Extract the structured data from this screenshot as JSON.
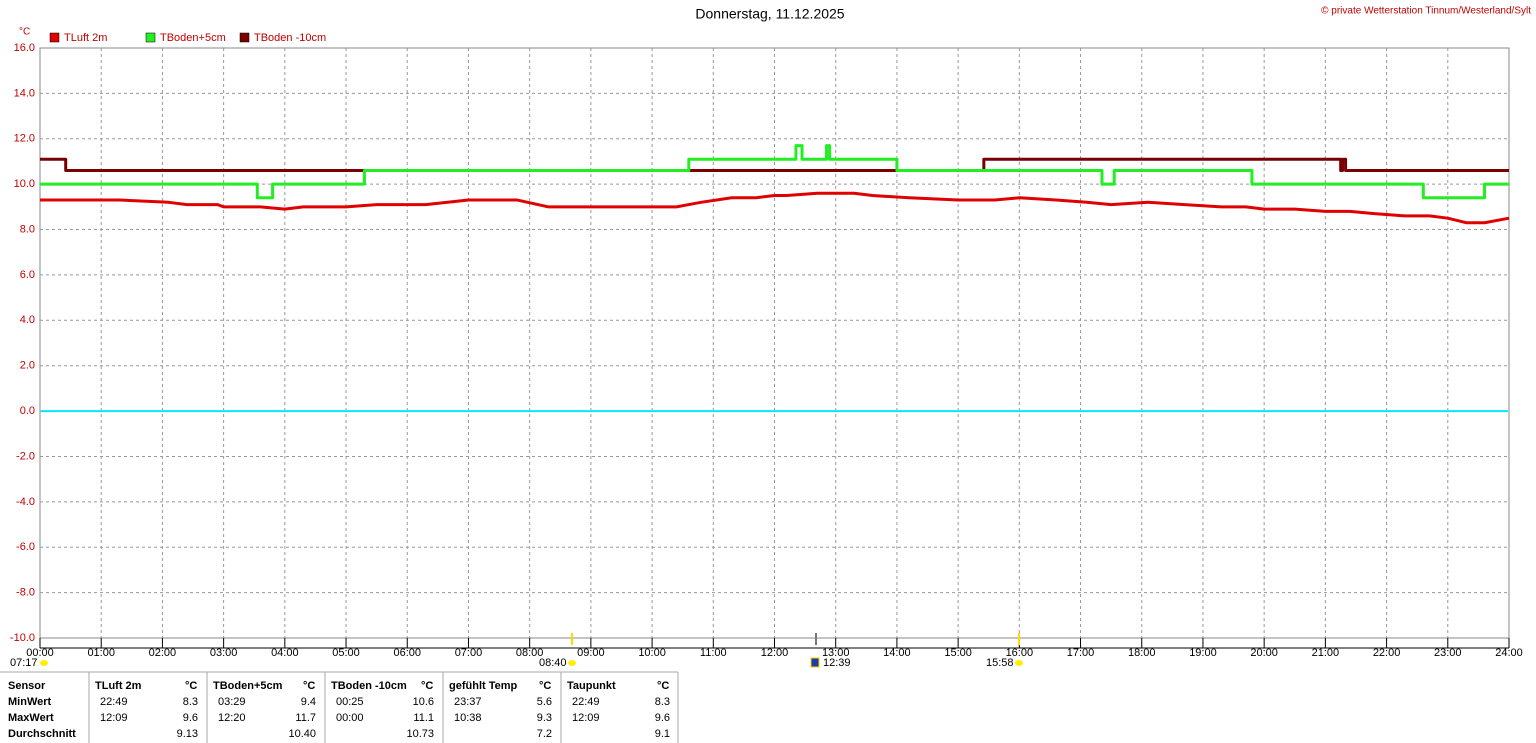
{
  "chart_data": {
    "type": "line",
    "title": "Donnerstag, 11.12.2025",
    "copyright": "© private Wetterstation Tinnum/Westerland/Sylt",
    "y_label": "°C",
    "xlim": [
      0,
      24
    ],
    "xticks": [
      {
        "value": 0,
        "label": "00:00"
      },
      {
        "value": 1,
        "label": "01:00"
      },
      {
        "value": 2,
        "label": "02:00"
      },
      {
        "value": 3,
        "label": "03:00"
      },
      {
        "value": 4,
        "label": "04:00"
      },
      {
        "value": 5,
        "label": "05:00"
      },
      {
        "value": 6,
        "label": "06:00"
      },
      {
        "value": 7,
        "label": "07:00"
      },
      {
        "value": 8,
        "label": "08:00"
      },
      {
        "value": 9,
        "label": "09:00"
      },
      {
        "value": 10,
        "label": "10:00"
      },
      {
        "value": 11,
        "label": "11:00"
      },
      {
        "value": 12,
        "label": "12:00"
      },
      {
        "value": 13,
        "label": "13:00"
      },
      {
        "value": 14,
        "label": "14:00"
      },
      {
        "value": 15,
        "label": "15:00"
      },
      {
        "value": 16,
        "label": "16:00"
      },
      {
        "value": 17,
        "label": "17:00"
      },
      {
        "value": 18,
        "label": "18:00"
      },
      {
        "value": 19,
        "label": "19:00"
      },
      {
        "value": 20,
        "label": "20:00"
      },
      {
        "value": 21,
        "label": "21:00"
      },
      {
        "value": 22,
        "label": "22:00"
      },
      {
        "value": 23,
        "label": "23:00"
      },
      {
        "value": 24,
        "label": "24:00"
      }
    ],
    "ylim": [
      -10,
      16
    ],
    "yticks": [
      {
        "value": -10,
        "label": "-10.0"
      },
      {
        "value": -8,
        "label": "-8.0"
      },
      {
        "value": -6,
        "label": "-6.0"
      },
      {
        "value": -4,
        "label": "-4.0"
      },
      {
        "value": -2,
        "label": "-2.0"
      },
      {
        "value": 0,
        "label": "0.0"
      },
      {
        "value": 2,
        "label": "2.0"
      },
      {
        "value": 4,
        "label": "4.0"
      },
      {
        "value": 6,
        "label": "6.0"
      },
      {
        "value": 8,
        "label": "8.0"
      },
      {
        "value": 10,
        "label": "10.0"
      },
      {
        "value": 12,
        "label": "12.0"
      },
      {
        "value": 14,
        "label": "14.0"
      },
      {
        "value": 16,
        "label": "16.0"
      }
    ],
    "grid": true,
    "reference_line": {
      "value": 0,
      "color": "#00e8ff"
    },
    "time_markers": [
      "07:17",
      "08:40",
      "12:39",
      "15:58"
    ],
    "series": [
      {
        "name": "TLuft 2m",
        "color": "#e00000",
        "line_style": "linear",
        "x": [
          0,
          1.3,
          2.1,
          2.4,
          2.9,
          3.0,
          3.6,
          4.0,
          4.3,
          5.0,
          5.5,
          6.3,
          7.0,
          7.8,
          8.3,
          9.5,
          10.4,
          10.6,
          10.8,
          11.3,
          11.7,
          12.0,
          12.2,
          12.7,
          13.0,
          13.3,
          13.6,
          14.2,
          15.0,
          15.6,
          16.0,
          16.6,
          17.1,
          17.5,
          18.1,
          18.7,
          19.3,
          19.7,
          20.0,
          20.5,
          21.0,
          21.4,
          21.8,
          22.3,
          22.7,
          23.0,
          23.3,
          23.6,
          24
        ],
        "values": [
          9.3,
          9.3,
          9.2,
          9.1,
          9.1,
          9.0,
          9.0,
          8.9,
          9.0,
          9.0,
          9.1,
          9.1,
          9.3,
          9.3,
          9.0,
          9.0,
          9.0,
          9.1,
          9.2,
          9.4,
          9.4,
          9.5,
          9.5,
          9.6,
          9.6,
          9.6,
          9.5,
          9.4,
          9.3,
          9.3,
          9.4,
          9.3,
          9.2,
          9.1,
          9.2,
          9.1,
          9.0,
          9.0,
          8.9,
          8.9,
          8.8,
          8.8,
          8.7,
          8.6,
          8.6,
          8.5,
          8.3,
          8.3,
          8.5
        ]
      },
      {
        "name": "TBoden+5cm",
        "color": "#22ee22",
        "line_style": "step",
        "x": [
          0,
          3.55,
          3.8,
          5.3,
          10.6,
          12.35,
          12.45,
          12.85,
          12.9,
          14.0,
          17.35,
          17.55,
          19.8,
          22.6,
          23.6,
          24
        ],
        "values": [
          10.0,
          9.4,
          10.0,
          10.6,
          11.1,
          11.7,
          11.1,
          11.7,
          11.1,
          10.6,
          10.0,
          10.6,
          10.0,
          9.4,
          10.0,
          10.0
        ]
      },
      {
        "name": "TBoden -10cm",
        "color": "#7a0000",
        "line_style": "step",
        "x": [
          0,
          0.42,
          15.42,
          21.25,
          21.28,
          21.33,
          24
        ],
        "values": [
          11.1,
          10.6,
          11.1,
          10.6,
          11.1,
          10.6,
          10.6
        ]
      }
    ]
  },
  "table": {
    "header": [
      "Sensor",
      "TLuft 2m",
      "°C",
      "TBoden+5cm",
      "°C",
      "TBoden -10cm",
      "°C",
      "gefühlt Temp",
      "°C",
      "Taupunkt",
      "°C"
    ],
    "rows": [
      [
        "MinWert",
        "22:49",
        "8.3",
        "03:29",
        "9.4",
        "00:25",
        "10.6",
        "23:37",
        "5.6",
        "22:49",
        "8.3"
      ],
      [
        "MaxWert",
        "12:09",
        "9.6",
        "12:20",
        "11.7",
        "00:00",
        "11.1",
        "10:38",
        "9.3",
        "12:09",
        "9.6"
      ],
      [
        "Durchschnitt",
        null,
        "9.13",
        null,
        "10.40",
        null,
        "10.73",
        null,
        "7.2",
        null,
        "9.1"
      ]
    ]
  }
}
